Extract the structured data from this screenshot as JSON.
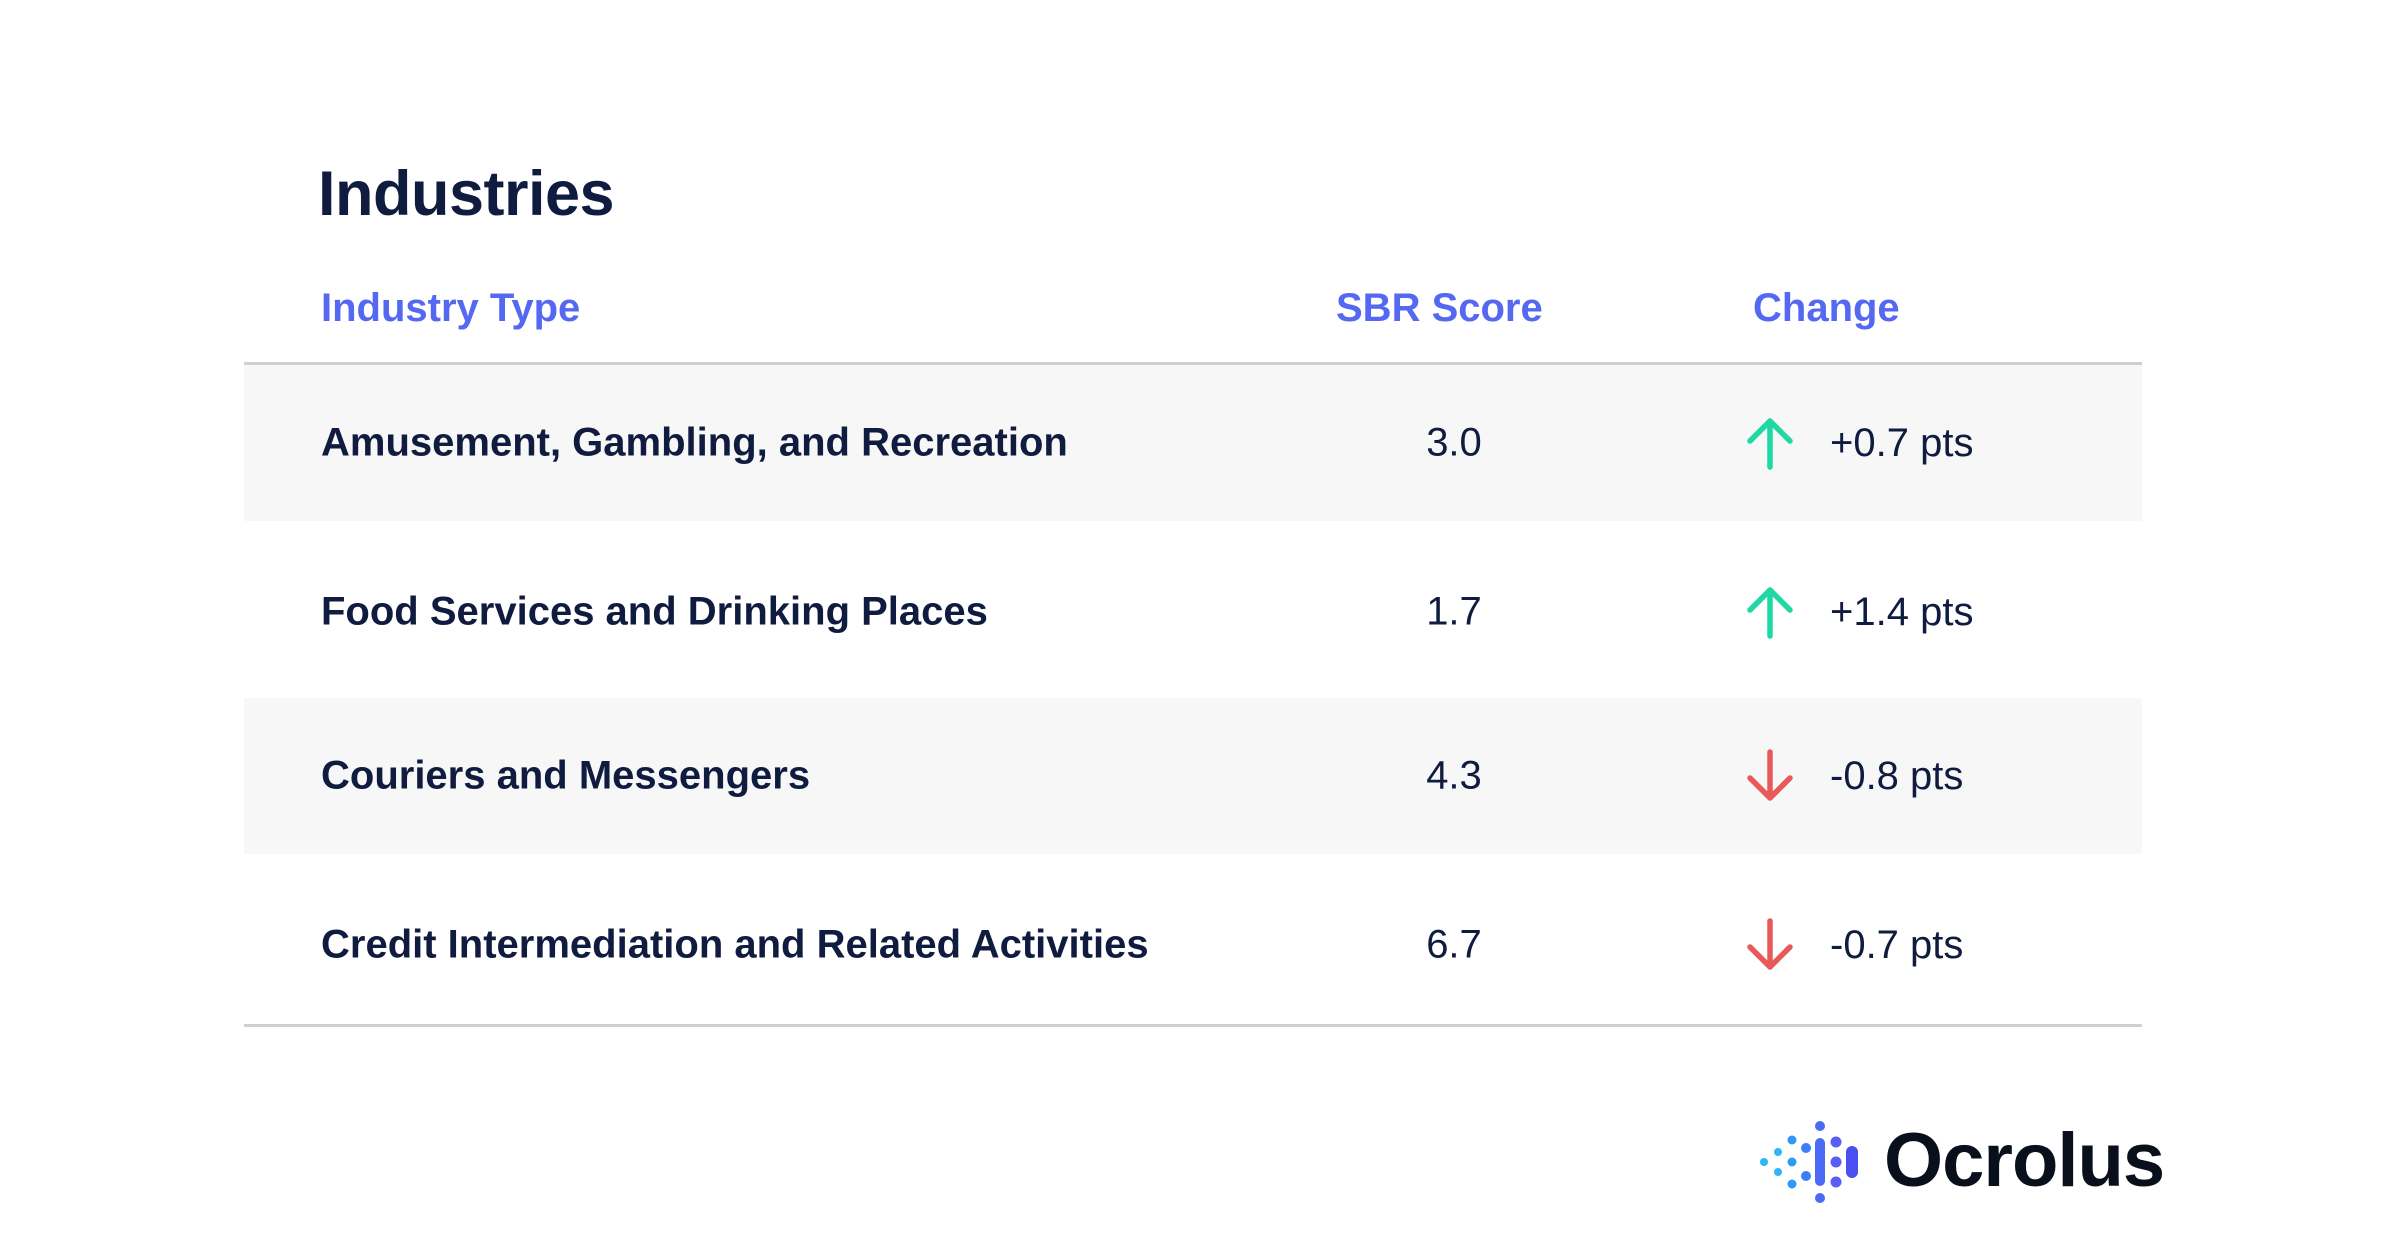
{
  "title": "Industries",
  "columns": {
    "industry": "Industry Type",
    "score": "SBR Score",
    "change": "Change"
  },
  "rows": [
    {
      "industry": "Amusement, Gambling, and Recreation",
      "score": "3.0",
      "change": "+0.7 pts",
      "direction": "up"
    },
    {
      "industry": "Food Services and Drinking Places",
      "score": "1.7",
      "change": "+1.4 pts",
      "direction": "up"
    },
    {
      "industry": "Couriers and Messengers",
      "score": "4.3",
      "change": "-0.8 pts",
      "direction": "down"
    },
    {
      "industry": "Credit Intermediation and Related Activities",
      "score": "6.7",
      "change": "-0.7 pts",
      "direction": "down"
    }
  ],
  "colors": {
    "title": "#0f1c3f",
    "header": "#5568f2",
    "up": "#1fd8a4",
    "down": "#e85a5a",
    "row_shade": "#f7f7f7"
  },
  "logo": {
    "text": "Ocrolus"
  }
}
